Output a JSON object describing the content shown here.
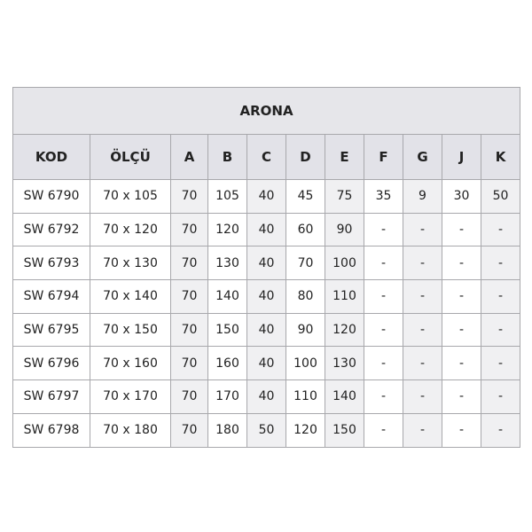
{
  "title": "ARONA",
  "columns": [
    "KOD",
    "ÖLÇÜ",
    "A",
    "B",
    "C",
    "D",
    "E",
    "F",
    "G",
    "J",
    "K"
  ],
  "rows": [
    [
      "SW 6790",
      "70 x 105",
      "70",
      "105",
      "40",
      "45",
      "75",
      "35",
      "9",
      "30",
      "50"
    ],
    [
      "SW 6792",
      "70 x 120",
      "70",
      "120",
      "40",
      "60",
      "90",
      "-",
      "-",
      "-",
      "-"
    ],
    [
      "SW 6793",
      "70 x 130",
      "70",
      "130",
      "40",
      "70",
      "100",
      "-",
      "-",
      "-",
      "-"
    ],
    [
      "SW 6794",
      "70 x 140",
      "70",
      "140",
      "40",
      "80",
      "110",
      "-",
      "-",
      "-",
      "-"
    ],
    [
      "SW 6795",
      "70 x 150",
      "70",
      "150",
      "40",
      "90",
      "120",
      "-",
      "-",
      "-",
      "-"
    ],
    [
      "SW 6796",
      "70 x 160",
      "70",
      "160",
      "40",
      "100",
      "130",
      "-",
      "-",
      "-",
      "-"
    ],
    [
      "SW 6797",
      "70 x 170",
      "70",
      "170",
      "40",
      "110",
      "140",
      "-",
      "-",
      "-",
      "-"
    ],
    [
      "SW 6798",
      "70 x 180",
      "70",
      "180",
      "50",
      "120",
      "150",
      "-",
      "-",
      "-",
      "-"
    ]
  ]
}
